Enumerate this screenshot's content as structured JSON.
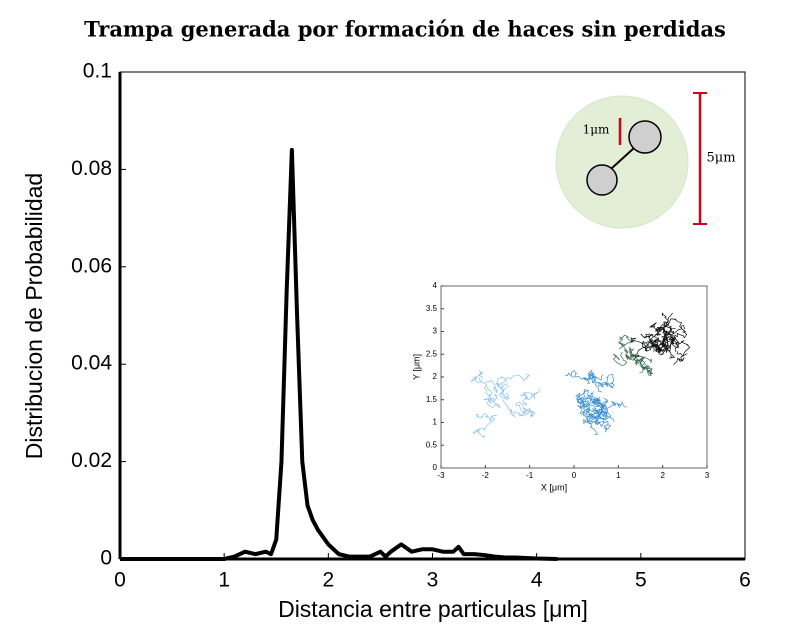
{
  "chart_data": {
    "type": "line",
    "title": "Trampa generada por formación de haces sin perdidas",
    "xlabel": "Distancia entre particulas [μm]",
    "ylabel": "Distribucion de Probabilidad",
    "xlim": [
      0,
      6
    ],
    "xticks": [
      0,
      1,
      2,
      3,
      4,
      5,
      6
    ],
    "ylim": [
      0,
      0.1
    ],
    "yticks": [
      0,
      0.02,
      0.04,
      0.06,
      0.08,
      0.1
    ],
    "series": [
      {
        "color": "#000000",
        "x": [
          0,
          1.0,
          1.1,
          1.2,
          1.3,
          1.4,
          1.45,
          1.5,
          1.55,
          1.6,
          1.65,
          1.7,
          1.75,
          1.8,
          1.85,
          1.9,
          2.0,
          2.1,
          2.2,
          2.3,
          2.4,
          2.5,
          2.55,
          2.6,
          2.7,
          2.8,
          2.9,
          3.0,
          3.1,
          3.2,
          3.25,
          3.3,
          3.4,
          3.5,
          3.6,
          3.7,
          3.8,
          3.9,
          4.0,
          4.2
        ],
        "values": [
          0,
          0,
          0.0005,
          0.0015,
          0.001,
          0.0015,
          0.001,
          0.004,
          0.02,
          0.055,
          0.084,
          0.05,
          0.02,
          0.011,
          0.008,
          0.006,
          0.003,
          0.001,
          0.0005,
          0.0005,
          0.0005,
          0.0015,
          0.0005,
          0.0015,
          0.003,
          0.0015,
          0.002,
          0.002,
          0.0015,
          0.0015,
          0.0025,
          0.001,
          0.001,
          0.0008,
          0.0005,
          0.0003,
          0.0003,
          0.0002,
          0.0001,
          0
        ]
      }
    ],
    "annotations": [
      "1μm",
      "5μm"
    ],
    "inset": {
      "xlabel": "X [μm]",
      "ylabel": "Y [μm]",
      "xlim": [
        -3,
        3
      ],
      "xticks": [
        -3,
        -2,
        -1,
        0,
        1,
        2,
        3
      ],
      "ylim": [
        0,
        4
      ],
      "yticks": [
        0,
        0.5,
        1,
        1.5,
        2,
        2.5,
        3,
        3.5,
        4
      ]
    }
  }
}
